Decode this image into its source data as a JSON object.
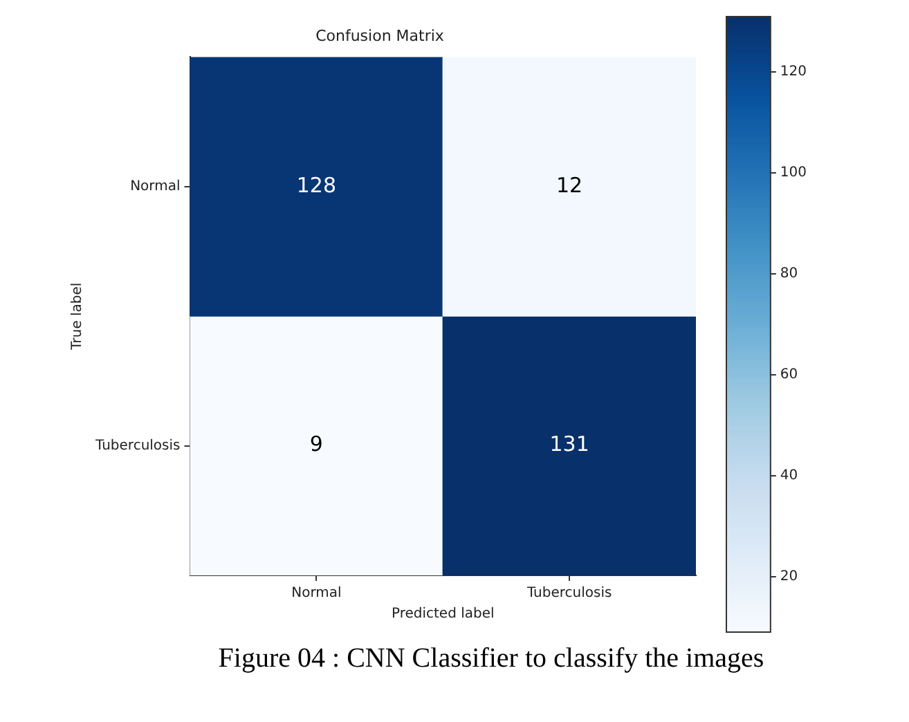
{
  "chart_data": {
    "type": "heatmap",
    "title": "Confusion Matrix",
    "xlabel": "Predicted label",
    "ylabel": "True label",
    "categories": [
      "Normal",
      "Tuberculosis"
    ],
    "y_categories": [
      "Normal",
      "Tuberculosis"
    ],
    "cells": [
      [
        128,
        12
      ],
      [
        9,
        131
      ]
    ],
    "clim": [
      9,
      131
    ],
    "cticks": [
      20,
      40,
      60,
      80,
      100,
      120
    ],
    "data_labels": true,
    "grid": false,
    "annotations": [
      "Figure 04 : CNN Classifier to classify the images"
    ]
  }
}
